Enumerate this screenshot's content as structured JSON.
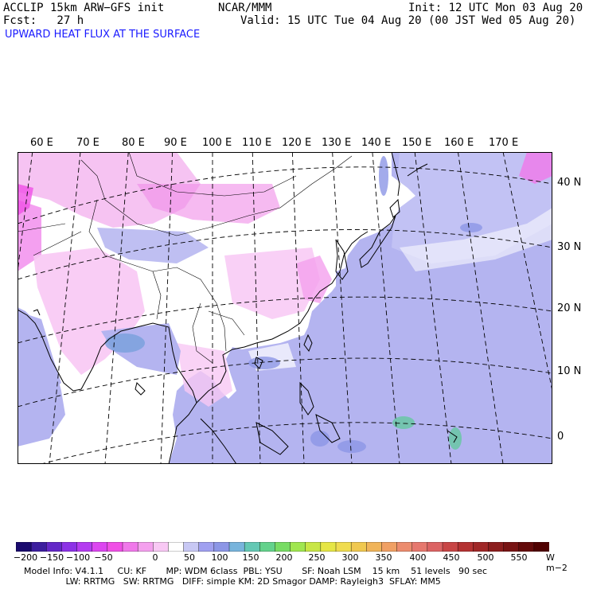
{
  "header": {
    "model": "ACCLIP 15km ARW−GFS init",
    "center": "NCAR/MMM",
    "init": "Init: 12 UTC Mon 03 Aug 20",
    "fcst": "Fcst:   27 h",
    "valid": "Valid: 15 UTC Tue 04 Aug 20 (00 JST Wed 05 Aug 20)",
    "field_title": "UPWARD HEAT FLUX AT THE SURFACE"
  },
  "map": {
    "lon_labels": [
      "60 E",
      "70 E",
      "80 E",
      "90 E",
      "100 E",
      "110 E",
      "120 E",
      "130 E",
      "140 E",
      "150 E",
      "160 E",
      "170 E"
    ],
    "lat_labels": [
      "40 N",
      "30 N",
      "20 N",
      "10 N",
      "0"
    ],
    "colors": {
      "land_pink": "#f4b8f0",
      "land_white": "#ffffff",
      "ocean_lavender": "#b4b4f0",
      "ocean_blue": "#8c8ce6",
      "flux_green": "#64c8a0",
      "coast": "#000000",
      "grid": "#000000"
    }
  },
  "colorbar": {
    "labels": [
      "−200",
      "−150",
      "−100",
      "−50",
      "0",
      "50",
      "100",
      "150",
      "200",
      "250",
      "300",
      "350",
      "400",
      "450",
      "500",
      "550"
    ],
    "unit": "W m−2",
    "colors": [
      "#1a0a6e",
      "#3c1e9e",
      "#6428c8",
      "#8c32e6",
      "#b43cf0",
      "#dc46f0",
      "#f050e6",
      "#f078ea",
      "#f4a0ee",
      "#f8c8f4",
      "#ffffff",
      "#c8c8f4",
      "#a0a0f0",
      "#8c96e6",
      "#78b4dc",
      "#64c8b4",
      "#64d28c",
      "#78dc64",
      "#a0e650",
      "#c8e646",
      "#e6e646",
      "#f0dc50",
      "#f0c850",
      "#f0b45a",
      "#f0a064",
      "#ec8c6e",
      "#e6786e",
      "#dc6464",
      "#c84646",
      "#b43232",
      "#a02828",
      "#8c1e1e",
      "#781414",
      "#640a0a",
      "#500000"
    ]
  },
  "footer": {
    "line1": "Model Info: V4.1.1     CU: KF       MP: WDM 6class  PBL: YSU       SF: Noah LSM    15 km    51 levels   90 sec",
    "line2": "               LW: RRTMG   SW: RRTMG   DIFF: simple KM: 2D Smagor DAMP: Rayleigh3  SFLAY: MM5"
  }
}
